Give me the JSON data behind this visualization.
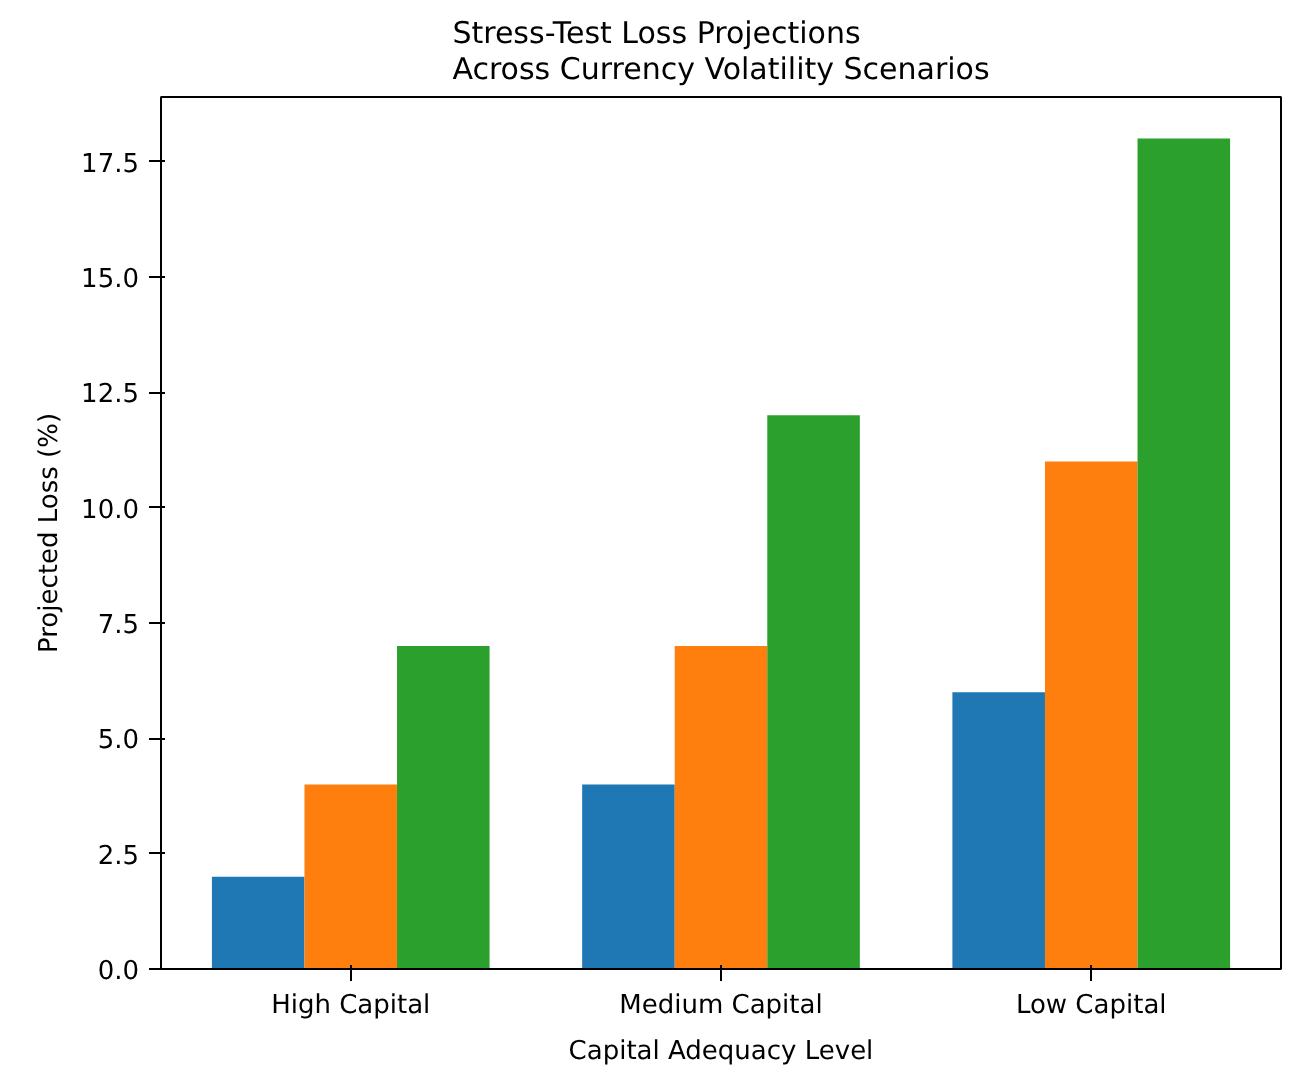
{
  "chart_data": {
    "type": "bar",
    "title": "Stress-Test Loss Projections\nAcross Currency Volatility Scenarios",
    "xlabel": "Capital Adequacy Level",
    "ylabel": "Projected Loss (%)",
    "categories": [
      "High Capital",
      "Medium Capital",
      "Low Capital"
    ],
    "series": [
      {
        "color": "#1f77b4",
        "values": [
          2,
          4,
          6
        ]
      },
      {
        "color": "#ff7f0e",
        "values": [
          4,
          7,
          11
        ]
      },
      {
        "color": "#2ca02c",
        "values": [
          7,
          12,
          18
        ]
      }
    ],
    "ylim": [
      0,
      18.9
    ],
    "yticks": [
      {
        "value": 0,
        "label": "0.0"
      },
      {
        "value": 2.5,
        "label": "2.5"
      },
      {
        "value": 5,
        "label": "5.0"
      },
      {
        "value": 7.5,
        "label": "7.5"
      },
      {
        "value": 10,
        "label": "10.0"
      },
      {
        "value": 12.5,
        "label": "12.5"
      },
      {
        "value": 15,
        "label": "15.0"
      },
      {
        "value": 17.5,
        "label": "17.5"
      }
    ],
    "grid": false
  }
}
